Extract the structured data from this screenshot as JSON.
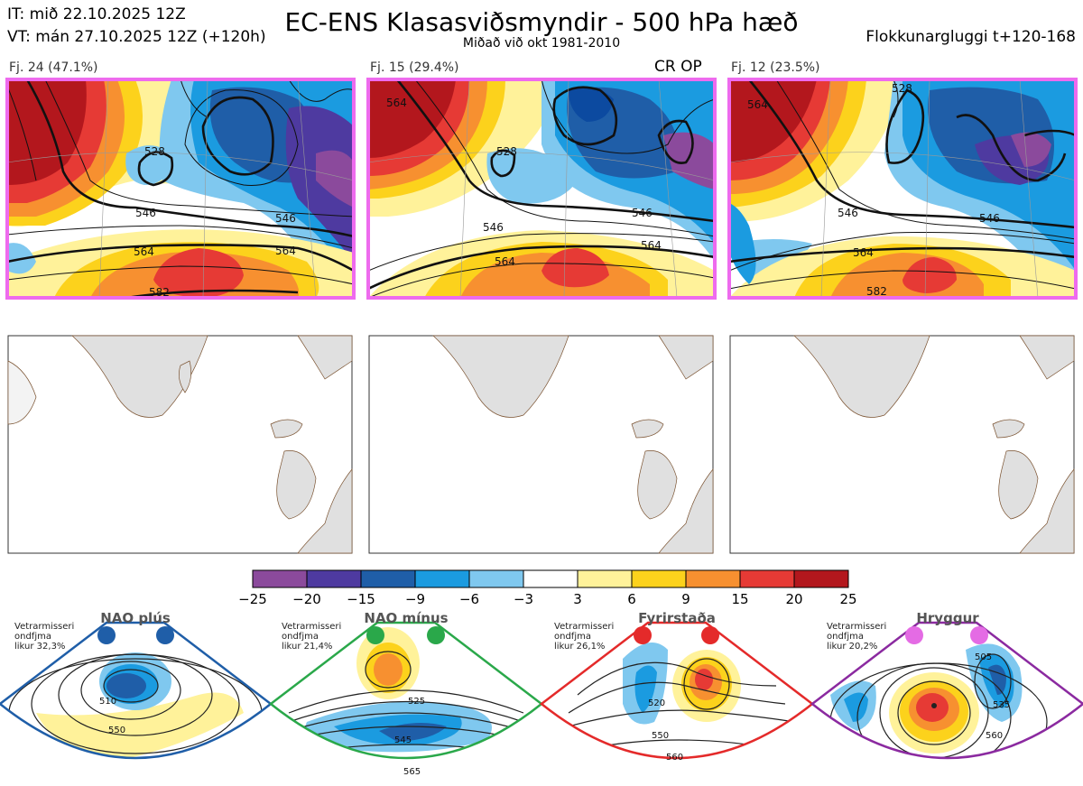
{
  "header": {
    "issue_time": "IT: mið 22.10.2025 12Z",
    "valid_time": "VT: mán 27.10.2025 12Z  (+120h)",
    "title": "EC-ENS Klasasviðsmyndir - 500 hPa hæð",
    "subtitle": "Miðað við okt 1981-2010",
    "window": "Flokkunargluggi t+120-168"
  },
  "clusters": [
    {
      "label": "Fj. 24 (47.1%)",
      "members": 24,
      "percent": 47.1,
      "contours": [
        "528",
        "546",
        "546",
        "564",
        "564",
        "582"
      ]
    },
    {
      "label": "Fj. 15 (29.4%)",
      "members": 15,
      "percent": 29.4,
      "contours": [
        "564",
        "528",
        "546",
        "546",
        "564",
        "564"
      ],
      "tag": "CR OP"
    },
    {
      "label": "Fj. 12 (23.5%)",
      "members": 12,
      "percent": 23.5,
      "contours": [
        "564",
        "528",
        "546",
        "546",
        "564",
        "582"
      ]
    }
  ],
  "colorbar": {
    "ticks": [
      "−25",
      "−20",
      "−15",
      "−9",
      "−6",
      "−3",
      "3",
      "6",
      "9",
      "15",
      "20",
      "25"
    ],
    "colors": [
      "#8b4a9c",
      "#4e3aa0",
      "#1f5ea8",
      "#1b9be0",
      "#7fc8ef",
      "#ffffff",
      "#fff29a",
      "#fcd21c",
      "#f79030",
      "#e63a35",
      "#b3171d"
    ]
  },
  "regimes": [
    {
      "title": "NAO plús",
      "text": [
        "Vetrarmisseri",
        "ondfjma",
        "likur 32,3%"
      ],
      "color": "#1f5ea8",
      "labels": [
        "510",
        "550"
      ]
    },
    {
      "title": "NAO mínus",
      "text": [
        "Vetrarmisseri",
        "ondfjma",
        "likur 21,4%"
      ],
      "color": "#2aa84a",
      "labels": [
        "525",
        "545",
        "565"
      ]
    },
    {
      "title": "Fyrirstaða",
      "text": [
        "Vetrarmisseri",
        "ondfjma",
        "likur 26,1%"
      ],
      "color": "#e42a2a",
      "labels": [
        "520",
        "550",
        "560"
      ]
    },
    {
      "title": "Hryggur",
      "text": [
        "Vetrarmisseri",
        "ondfjma",
        "likur 20,2%"
      ],
      "color": "#e46be4",
      "labels": [
        "505",
        "535",
        "560"
      ]
    }
  ]
}
